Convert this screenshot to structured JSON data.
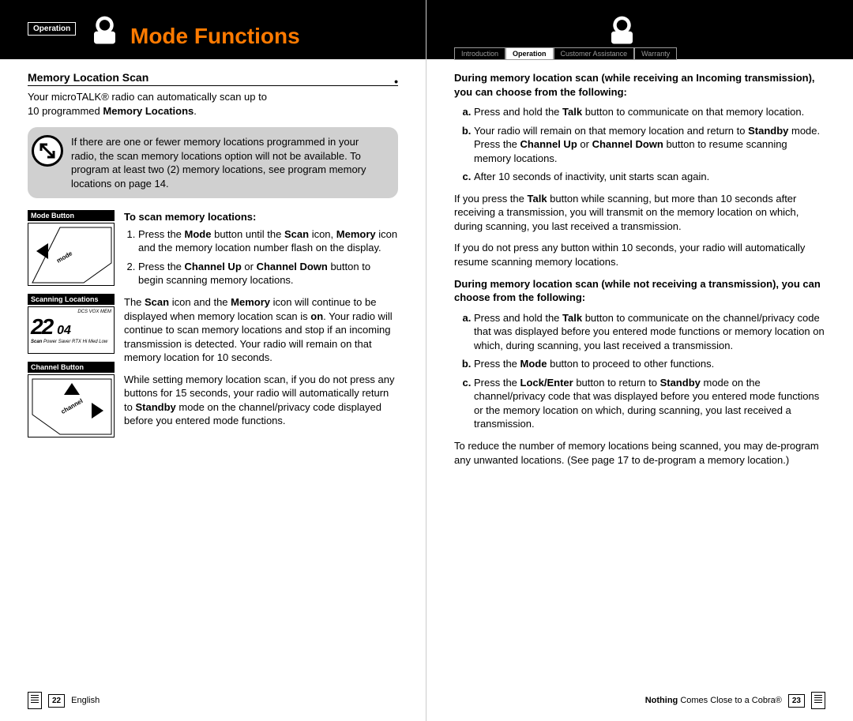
{
  "colors": {
    "accent": "#ff7a00",
    "black": "#000000",
    "white": "#ffffff",
    "grey": "#d0d0d0",
    "dimText": "#999999"
  },
  "header": {
    "operationLabel": "Operation",
    "title": "Mode Functions",
    "tabs": {
      "introduction": "Introduction",
      "operation": "Operation",
      "customerAssistance": "Customer Assistance",
      "warranty": "Warranty"
    }
  },
  "left": {
    "sectionTitle": "Memory Location Scan",
    "introLine1": "Your microTALK® radio can automatically scan up to",
    "introLine2": "10 programmed ",
    "introBold": "Memory Locations",
    "introEnd": ".",
    "noteText": "If there are one or fewer memory locations programmed in your radio, the scan memory locations option will not be available. To program at least two (2) memory locations, see program memory locations on page 14.",
    "imgLabels": {
      "modeButton": "Mode Button",
      "scanningLocations": "Scanning Locations",
      "channelButton": "Channel Button"
    },
    "lcdDigits": "22",
    "lcdSub": "04",
    "lcdIcons": "DCS VOX MEM",
    "lcdScan": "Scan",
    "lcdPower": "Power Saver   RTX   Hi Med Low",
    "subheading": "To scan memory locations:",
    "step1": "Press the <b>Mode</b> button until the <b>Scan</b> icon, <b>Memory</b> icon and the memory location number flash on the display.",
    "step2": "Press the <b>Channel Up</b> or <b>Channel Down</b> button to begin scanning memory locations.",
    "para1": "The <b>Scan</b> icon and the <b>Memory</b> icon will continue to be displayed when memory location scan is <b>on</b>. Your radio will continue to scan memory locations and stop if an incoming transmission is detected. Your radio will remain on that memory location for 10 seconds.",
    "para2": "While setting memory location scan, if you do not press any buttons for 15 seconds, your radio will automatically return to <b>Standby</b> mode on the channel/privacy code displayed before you entered mode functions.",
    "diagMode": "mode",
    "diagChannel": "channel"
  },
  "right": {
    "head1": "During memory location scan (while receiving an Incoming transmission), you can choose from the following:",
    "list1": {
      "a": "Press and hold the <b>Talk</b> button to communicate on that memory location.",
      "b": "Your radio will remain on that memory location and return to <b>Standby</b> mode. Press the <b>Channel Up</b> or <b>Channel Down</b> button to resume scanning memory locations.",
      "c": "After 10 seconds of inactivity, unit starts scan again."
    },
    "paraA": "If you press the <b>Talk</b> button while scanning, but more than 10 seconds after receiving a transmission, you will transmit on the memory location on which, during scanning, you last received a transmission.",
    "paraB": "If you do not press any button within 10 seconds, your radio will automatically resume scanning memory locations.",
    "head2": "During memory location scan (while not receiving a transmission), you can choose from the following:",
    "list2": {
      "a": "Press and hold the <b>Talk</b> button to communicate on the channel/privacy code that was displayed before you entered mode functions or memory location on which, during scanning, you last received a transmission.",
      "b": "Press the <b>Mode</b> button to proceed to other functions.",
      "c": "Press the <b>Lock/Enter</b> button to return to <b>Standby</b> mode on the channel/privacy code that was displayed before you entered mode functions or the memory location on which, during scanning, you last received a transmission."
    },
    "paraC": "To reduce the number of memory locations being scanned, you may de-program any unwanted locations. (See page 17 to de-program a memory location.)"
  },
  "footer": {
    "leftNum": "22",
    "leftLang": "English",
    "rightText": "<b>Nothing</b> Comes Close to a Cobra®",
    "rightNum": "23"
  }
}
